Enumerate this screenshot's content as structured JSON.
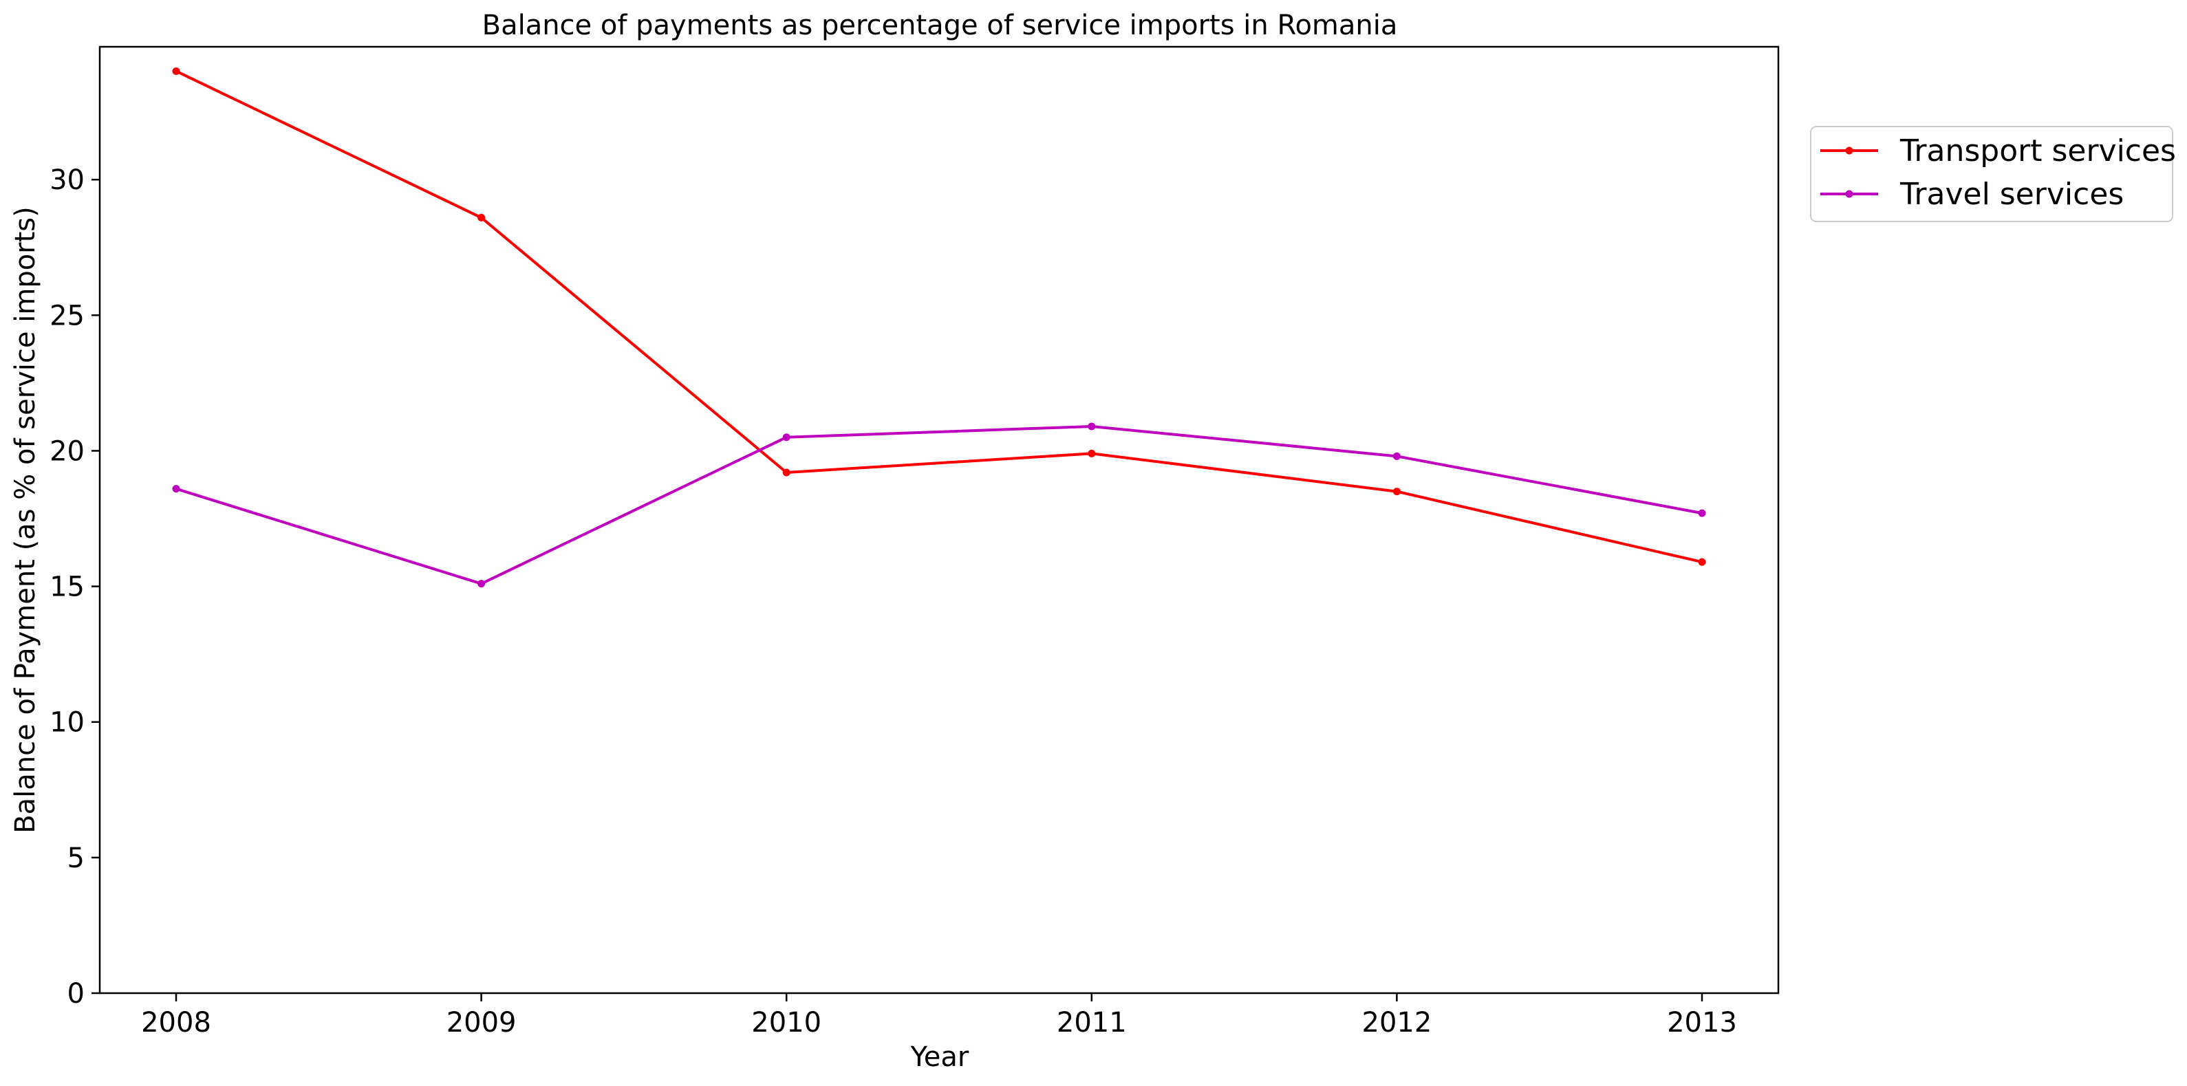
{
  "chart_data": {
    "type": "line",
    "title": "Balance of payments as percentage of service imports in Romania",
    "xlabel": "Year",
    "ylabel": "Balance of Payment (as % of service imports)",
    "categories": [
      "2008",
      "2009",
      "2010",
      "2011",
      "2012",
      "2013"
    ],
    "y_ticks": [
      "0",
      "5",
      "10",
      "15",
      "20",
      "25",
      "30"
    ],
    "ylim": [
      0,
      34.9
    ],
    "grid": false,
    "legend_position": "upper right, outside plot",
    "series": [
      {
        "name": "Transport services",
        "color": "#ff0000",
        "values": [
          34.0,
          28.6,
          19.2,
          19.9,
          18.5,
          15.9
        ]
      },
      {
        "name": "Travel services",
        "color": "#bf00bf",
        "values": [
          18.6,
          15.1,
          20.5,
          20.9,
          19.8,
          17.7
        ]
      }
    ]
  }
}
